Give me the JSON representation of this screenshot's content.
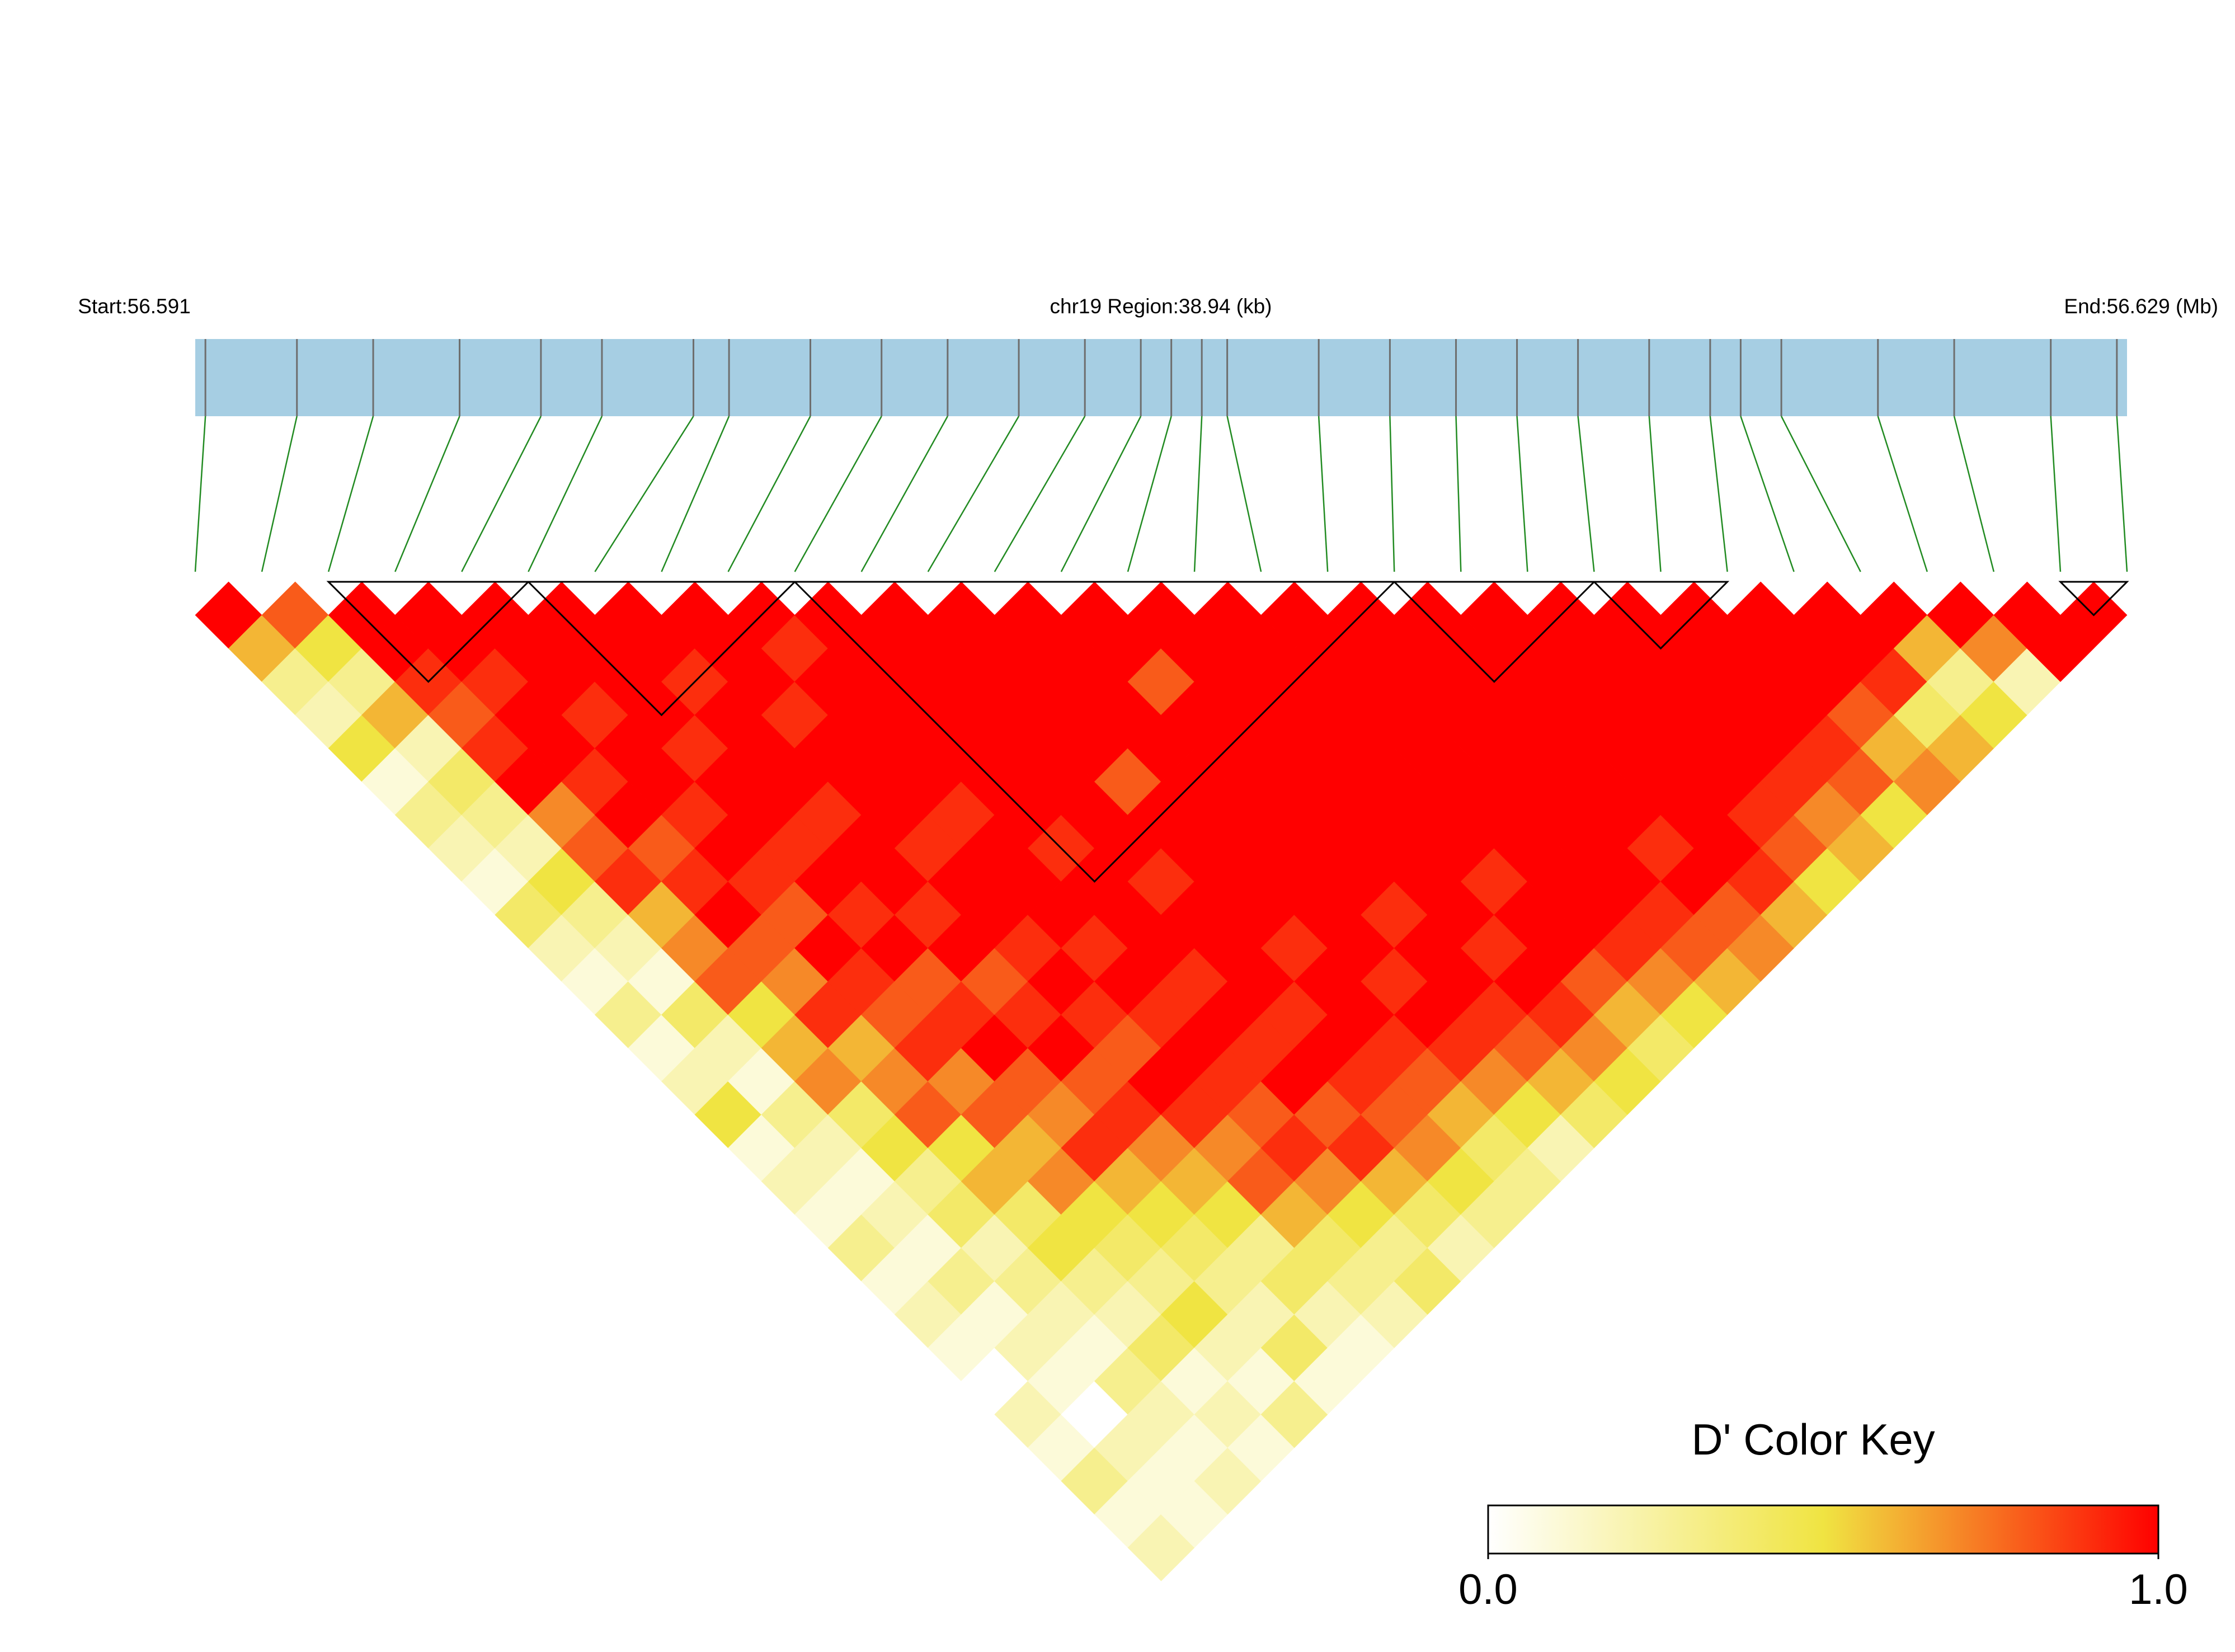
{
  "chart_data": {
    "type": "ld_heatmap",
    "start_label": "Start:56.591",
    "region_label": "chr19 Region:38.94 (kb)",
    "end_label": "End:56.629 (Mb)",
    "xlim": [
      56.591,
      56.629
    ],
    "bar_color": "#a6cee3",
    "marker_color": "#6e6e6e",
    "connector_color": "#228b22",
    "block_color": "#000000",
    "snp_positions": [
      56.5912,
      56.593,
      56.5945,
      56.5962,
      56.5978,
      56.599,
      56.6008,
      56.6015,
      56.6031,
      56.6045,
      56.6058,
      56.6072,
      56.6085,
      56.6096,
      56.6102,
      56.6108,
      56.6113,
      56.6131,
      56.6145,
      56.6158,
      56.617,
      56.6182,
      56.6196,
      56.6208,
      56.6214,
      56.6222,
      56.6241,
      56.6256,
      56.6275,
      56.6288
    ],
    "dprime": [
      [
        1.0,
        0.6,
        0.3,
        0.2,
        0.5,
        0.1,
        0.3,
        0.2,
        0.1,
        0.4,
        0.2,
        0.1,
        0.3,
        0.1,
        0.2,
        0.5,
        0.1,
        0.2,
        0.1,
        0.3,
        0.1,
        0.2,
        0.1,
        0.0,
        0.2,
        0.1,
        0.3,
        0.1,
        0.2
      ],
      [
        0.8,
        0.5,
        0.3,
        0.6,
        0.2,
        0.4,
        0.3,
        0.2,
        0.5,
        0.3,
        0.2,
        0.1,
        0.4,
        0.2,
        0.1,
        0.3,
        0.2,
        0.1,
        0.2,
        0.1,
        0.3,
        0.1,
        0.2,
        0.1,
        0.0,
        0.2,
        0.1,
        0.1
      ],
      [
        1.0,
        1.0,
        0.9,
        0.8,
        0.9,
        1.0,
        0.7,
        0.8,
        0.9,
        0.6,
        0.7,
        0.8,
        0.5,
        0.6,
        0.7,
        0.4,
        0.5,
        0.3,
        0.4,
        0.2,
        0.3,
        0.2,
        0.1,
        0.3,
        0.2,
        0.1,
        0.2
      ],
      [
        1.0,
        1.0,
        0.9,
        1.0,
        1.0,
        0.9,
        1.0,
        0.8,
        0.9,
        1.0,
        0.8,
        0.7,
        0.9,
        0.6,
        0.7,
        0.8,
        0.5,
        0.6,
        0.4,
        0.5,
        0.3,
        0.2,
        0.4,
        0.1,
        0.2,
        0.1
      ],
      [
        1.0,
        1.0,
        1.0,
        0.9,
        1.0,
        1.0,
        0.9,
        1.0,
        0.9,
        0.8,
        1.0,
        0.9,
        0.8,
        0.9,
        0.7,
        0.8,
        0.6,
        0.7,
        0.5,
        0.4,
        0.3,
        0.5,
        0.2,
        0.1,
        0.3
      ],
      [
        1.0,
        1.0,
        1.0,
        1.0,
        0.9,
        1.0,
        1.0,
        0.9,
        1.0,
        0.9,
        1.0,
        0.8,
        0.9,
        1.0,
        0.8,
        0.7,
        0.9,
        0.6,
        0.5,
        0.4,
        0.3,
        0.2,
        0.4,
        0.1
      ],
      [
        1.0,
        1.0,
        0.9,
        1.0,
        1.0,
        1.0,
        0.9,
        1.0,
        1.0,
        0.9,
        1.0,
        0.8,
        0.9,
        1.0,
        0.8,
        0.9,
        0.7,
        0.6,
        0.5,
        0.3,
        0.4,
        0.2,
        0.1
      ],
      [
        1.0,
        1.0,
        1.0,
        0.9,
        1.0,
        1.0,
        1.0,
        0.9,
        1.0,
        1.0,
        0.9,
        1.0,
        0.9,
        0.8,
        1.0,
        0.9,
        0.7,
        0.8,
        0.6,
        0.4,
        0.3,
        0.2
      ],
      [
        1.0,
        0.9,
        1.0,
        1.0,
        1.0,
        1.0,
        0.9,
        1.0,
        1.0,
        1.0,
        0.9,
        1.0,
        0.9,
        1.0,
        0.9,
        0.8,
        0.9,
        0.7,
        0.5,
        0.3,
        0.4
      ],
      [
        1.0,
        1.0,
        1.0,
        1.0,
        1.0,
        1.0,
        1.0,
        0.9,
        1.0,
        1.0,
        1.0,
        0.9,
        1.0,
        0.9,
        1.0,
        0.8,
        0.9,
        0.6,
        0.4,
        0.2
      ],
      [
        1.0,
        1.0,
        1.0,
        1.0,
        1.0,
        1.0,
        1.0,
        1.0,
        0.9,
        1.0,
        1.0,
        1.0,
        0.9,
        1.0,
        0.9,
        0.8,
        0.7,
        0.5,
        0.3
      ],
      [
        1.0,
        1.0,
        1.0,
        1.0,
        1.0,
        0.8,
        1.0,
        1.0,
        1.0,
        1.0,
        0.9,
        1.0,
        1.0,
        0.9,
        0.8,
        0.6,
        0.4,
        0.3
      ],
      [
        1.0,
        1.0,
        1.0,
        1.0,
        1.0,
        1.0,
        1.0,
        1.0,
        1.0,
        1.0,
        1.0,
        0.9,
        1.0,
        0.9,
        0.7,
        0.5,
        0.2
      ],
      [
        1.0,
        1.0,
        0.8,
        1.0,
        1.0,
        1.0,
        1.0,
        1.0,
        1.0,
        0.9,
        1.0,
        1.0,
        0.9,
        0.8,
        0.6,
        0.4
      ],
      [
        1.0,
        1.0,
        1.0,
        1.0,
        1.0,
        1.0,
        1.0,
        1.0,
        1.0,
        1.0,
        0.9,
        1.0,
        0.9,
        0.7,
        0.5
      ],
      [
        1.0,
        1.0,
        1.0,
        1.0,
        1.0,
        1.0,
        1.0,
        1.0,
        0.9,
        1.0,
        1.0,
        0.8,
        0.6,
        0.4
      ],
      [
        1.0,
        1.0,
        1.0,
        1.0,
        1.0,
        1.0,
        1.0,
        1.0,
        1.0,
        1.0,
        0.9,
        0.7,
        0.5
      ],
      [
        1.0,
        1.0,
        1.0,
        1.0,
        1.0,
        1.0,
        1.0,
        1.0,
        1.0,
        0.9,
        0.8,
        0.6
      ],
      [
        1.0,
        1.0,
        1.0,
        1.0,
        1.0,
        1.0,
        1.0,
        0.9,
        1.0,
        0.8,
        0.7
      ],
      [
        1.0,
        1.0,
        1.0,
        1.0,
        1.0,
        1.0,
        1.0,
        1.0,
        0.9,
        0.6
      ],
      [
        1.0,
        1.0,
        1.0,
        1.0,
        1.0,
        1.0,
        0.9,
        0.8,
        0.5
      ],
      [
        1.0,
        1.0,
        1.0,
        1.0,
        1.0,
        0.9,
        0.7,
        0.6
      ],
      [
        1.0,
        1.0,
        1.0,
        1.0,
        0.9,
        0.8,
        0.5
      ],
      [
        1.0,
        1.0,
        1.0,
        0.8,
        0.6,
        0.7
      ],
      [
        1.0,
        1.0,
        0.9,
        0.4,
        0.6
      ],
      [
        1.0,
        0.6,
        0.3,
        0.5
      ],
      [
        1.0,
        0.7,
        0.2
      ],
      [
        1.0,
        1.0
      ],
      [
        1.0
      ]
    ],
    "blocks": [
      [
        2,
        5
      ],
      [
        5,
        9
      ],
      [
        9,
        18
      ],
      [
        18,
        21
      ],
      [
        21,
        23
      ],
      [
        28,
        29
      ]
    ],
    "colors": [
      "#ffffff",
      "#f0e442",
      "#ff0000"
    ],
    "key": {
      "title": "D' Color Key",
      "ticks": [
        {
          "value": 0,
          "label": "0.0"
        },
        {
          "value": 1,
          "label": "1.0"
        }
      ]
    }
  }
}
